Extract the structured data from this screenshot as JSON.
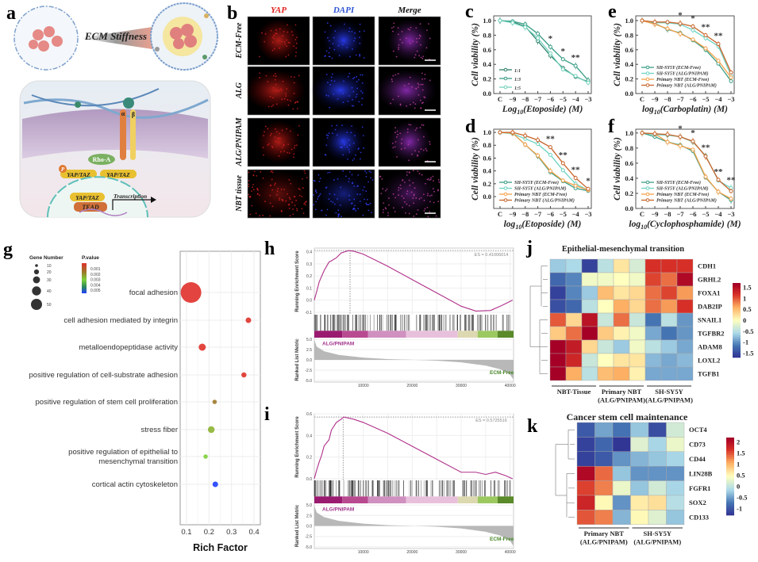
{
  "panel_labels": [
    "a",
    "b",
    "c",
    "d",
    "e",
    "f",
    "g",
    "h",
    "i",
    "j",
    "k"
  ],
  "panel_a": {
    "title": "ECM Stiffness",
    "rho": "Rho-A",
    "yap1": "YAP/TAZ",
    "yap2": "YAP/TAZ",
    "yap3": "YAP/TAZ",
    "tead": "TEAD",
    "transcription": "Transcription",
    "p": "P",
    "alpha": "α",
    "beta": "β"
  },
  "panel_b": {
    "columns": [
      {
        "label": "YAP",
        "color": "#e0201c"
      },
      {
        "label": "DAPI",
        "color": "#2f55d4"
      },
      {
        "label": "Merge",
        "color": "#111111"
      }
    ],
    "rows": [
      "ECM-Free",
      "ALG",
      "ALG/PNIPAM",
      "NBT tissue"
    ]
  },
  "chart_data": [
    {
      "panel": "c",
      "type": "line",
      "x": [
        "C",
        "−9",
        "−8",
        "−7",
        "−6",
        "−5",
        "−4",
        "−3"
      ],
      "xlabel": {
        "pre": "Log",
        "sub": "10",
        "post": "(Etoposide) (M)"
      },
      "ylabel": "Cell viability (%)",
      "ylim": [
        0,
        1.065
      ],
      "yticks": [
        "0.0",
        "0.2",
        "0.4",
        "0.6",
        "0.8",
        "1.0"
      ],
      "legend_position": "bottom-left",
      "series": [
        {
          "name": "1:1",
          "color": "#2f7f6a",
          "values": [
            1.0,
            0.98,
            0.92,
            0.72,
            0.52,
            0.35,
            0.23,
            0.16
          ]
        },
        {
          "name": "1:3",
          "color": "#3a9e86",
          "values": [
            1.0,
            0.99,
            0.95,
            0.82,
            0.64,
            0.47,
            0.38,
            0.18
          ]
        },
        {
          "name": "1:5",
          "color": "#72d2bd",
          "values": [
            1.0,
            0.97,
            0.91,
            0.76,
            0.55,
            0.33,
            0.24,
            0.15
          ]
        }
      ],
      "annotations": [
        {
          "x": 4,
          "text": "*"
        },
        {
          "x": 5,
          "text": "*"
        },
        {
          "x": 6,
          "text": "**"
        }
      ]
    },
    {
      "panel": "d",
      "type": "line",
      "x": [
        "C",
        "−9",
        "−8",
        "−7",
        "−6",
        "−5",
        "−4",
        "−3"
      ],
      "xlabel": {
        "pre": "log",
        "sub": "10",
        "post": "(Etoposide) (M)"
      },
      "ylabel": "Cell viability (%)",
      "ylim": [
        -0.185,
        1.05
      ],
      "yticks": [
        "0.0",
        "0.2",
        "0.4",
        "0.6",
        "0.8",
        "1.0"
      ],
      "legend_position": "bottom-left",
      "series": [
        {
          "name": "SH-SY5Y (ECM-Free)",
          "color": "#3a9e86",
          "values": [
            1.0,
            0.99,
            0.81,
            0.63,
            0.38,
            0.24,
            0.13,
            0.09
          ]
        },
        {
          "name": "SH-SY5Y (ALG/PNIPAM)",
          "color": "#6fd3c3",
          "values": [
            1.0,
            0.98,
            0.9,
            0.82,
            0.65,
            0.41,
            0.2,
            0.1
          ]
        },
        {
          "name": "Primary NBT (ECM-Free)",
          "color": "#f5a24a",
          "values": [
            1.0,
            0.99,
            0.81,
            0.64,
            0.4,
            0.25,
            0.17,
            0.1
          ]
        },
        {
          "name": "Primary NBT (ALG/PNIPAM)",
          "color": "#c8642a",
          "values": [
            1.0,
            1.0,
            0.95,
            0.88,
            0.77,
            0.52,
            0.29,
            0.12
          ]
        }
      ],
      "annotations": [
        {
          "x": 4,
          "text": "**"
        },
        {
          "x": 5,
          "text": "**"
        },
        {
          "x": 6,
          "text": "**"
        },
        {
          "x": 7,
          "text": "*"
        }
      ]
    },
    {
      "panel": "e",
      "type": "line",
      "x": [
        "C",
        "−9",
        "−8",
        "−7",
        "−6",
        "−5",
        "−4",
        "−3"
      ],
      "xlabel": {
        "pre": "log",
        "sub": "10",
        "post": "(Carboplatin) (M)"
      },
      "ylabel": "Cell viability (%)",
      "ylim": [
        0,
        1.065
      ],
      "yticks": [
        "0.0",
        "0.2",
        "0.4",
        "0.6",
        "0.8",
        "1.0"
      ],
      "legend_position": "bottom-left",
      "series": [
        {
          "name": "SH-SY5Y (ECM-Free)",
          "color": "#3a9e86",
          "values": [
            1.0,
            0.96,
            0.88,
            0.83,
            0.73,
            0.6,
            0.41,
            0.17
          ]
        },
        {
          "name": "SH-SY5Y (ALG/PNIPAM)",
          "color": "#6fd3c3",
          "values": [
            1.0,
            0.97,
            0.97,
            0.95,
            0.87,
            0.76,
            0.65,
            0.25
          ]
        },
        {
          "name": "Primary NBT (ECM-Free)",
          "color": "#f5a24a",
          "values": [
            1.0,
            0.95,
            0.89,
            0.82,
            0.74,
            0.62,
            0.45,
            0.22
          ]
        },
        {
          "name": "Primary NBT (ALG/PNIPAM)",
          "color": "#c8642a",
          "values": [
            1.0,
            0.98,
            0.98,
            0.96,
            0.92,
            0.8,
            0.68,
            0.29
          ]
        }
      ],
      "annotations": [
        {
          "x": 3,
          "text": "*"
        },
        {
          "x": 4,
          "text": "*"
        },
        {
          "x": 5,
          "text": "**"
        },
        {
          "x": 6,
          "text": "**"
        }
      ]
    },
    {
      "panel": "f",
      "type": "line",
      "x": [
        "C",
        "−9",
        "−8",
        "−7",
        "−6",
        "−5",
        "−4",
        "−3"
      ],
      "xlabel": {
        "pre": "log",
        "sub": "10",
        "post": "(Cyclophosphamide) (M)"
      },
      "ylabel": "Cell viability (%)",
      "ylim": [
        0,
        1.05
      ],
      "yticks": [
        "0.0",
        "0.2",
        "0.4",
        "0.6",
        "0.8",
        "1.0"
      ],
      "legend_position": "bottom-left",
      "series": [
        {
          "name": "SH-SY5Y (ECM-Free)",
          "color": "#3a9e86",
          "values": [
            1.0,
            0.95,
            0.88,
            0.84,
            0.76,
            0.41,
            0.22,
            0.11
          ]
        },
        {
          "name": "SH-SY5Y (ALG/PNIPAM)",
          "color": "#6fd3c3",
          "values": [
            1.0,
            0.98,
            0.97,
            0.95,
            0.88,
            0.7,
            0.37,
            0.27
          ]
        },
        {
          "name": "Primary NBT (ECM-Free)",
          "color": "#f5a24a",
          "values": [
            1.0,
            0.99,
            0.88,
            0.83,
            0.78,
            0.42,
            0.22,
            0.13
          ]
        },
        {
          "name": "Primary NBT (ALG/PNIPAM)",
          "color": "#c8642a",
          "values": [
            1.0,
            0.99,
            0.98,
            0.95,
            0.89,
            0.69,
            0.38,
            0.23
          ]
        }
      ],
      "annotations": [
        {
          "x": 3,
          "text": "*"
        },
        {
          "x": 4,
          "text": "*"
        },
        {
          "x": 5,
          "text": "**"
        },
        {
          "x": 6,
          "text": "**"
        },
        {
          "x": 7,
          "text": "**"
        }
      ]
    },
    {
      "panel": "g",
      "type": "scatter",
      "xlabel": "Rich Factor",
      "xlim": [
        0.072,
        0.428
      ],
      "xticks": [
        "0.1",
        "0.2",
        "0.3",
        "0.4"
      ],
      "grid": true,
      "size_legend": {
        "title": "Gene Number",
        "values": [
          "10",
          "20",
          "30",
          "40",
          "50"
        ]
      },
      "color_legend": {
        "title": "P.value",
        "values": [
          "0.001",
          "0.002",
          "0.003",
          "0.004",
          "0.005"
        ]
      },
      "points": [
        {
          "term": "focal adhesion",
          "rich_factor": 0.12,
          "gene_number": 50,
          "p_value": 0.0008
        },
        {
          "term": "cell adhesion mediated by integrin",
          "rich_factor": 0.375,
          "gene_number": 12,
          "p_value": 0.0009
        },
        {
          "term": "metalloendopeptidase activity",
          "rich_factor": 0.17,
          "gene_number": 16,
          "p_value": 0.0009
        },
        {
          "term": "positive regulation of cell-substrate adhesion",
          "rich_factor": 0.355,
          "gene_number": 11,
          "p_value": 0.001
        },
        {
          "term": "positive regulation of stem cell proliferation",
          "rich_factor": 0.225,
          "gene_number": 9,
          "p_value": 0.002
        },
        {
          "term": "stress fiber",
          "rich_factor": 0.21,
          "gene_number": 15,
          "p_value": 0.0026
        },
        {
          "term": "positive regulation of epithelial to mesenchymal transition",
          "rich_factor": 0.185,
          "gene_number": 9,
          "p_value": 0.003
        },
        {
          "term": "cortical actin cytoskeleton",
          "rich_factor": 0.228,
          "gene_number": 12,
          "p_value": 0.005
        }
      ]
    },
    {
      "panel": "h",
      "type": "line",
      "es_label": "ES = 0.41006014",
      "ylabel_top": "Running Enrichment Score",
      "ylabel_bottom": "Ranked List Metric",
      "xlim": [
        0,
        40700
      ],
      "xticks": [
        "10000",
        "20000",
        "30000",
        "40000"
      ],
      "ylim": [
        -0.12,
        0.43
      ],
      "yticks": [
        "-0.1",
        "0.0",
        "0.1",
        "0.2",
        "0.3",
        "0.4"
      ],
      "metric_ticks": [
        "5.0",
        "2.5",
        "0.0",
        "-2.5",
        "-5.0"
      ],
      "es_curve": [
        [
          0,
          0
        ],
        [
          500,
          0.07
        ],
        [
          1000,
          0.15
        ],
        [
          2000,
          0.24
        ],
        [
          3000,
          0.31
        ],
        [
          3500,
          0.33
        ],
        [
          4500,
          0.35
        ],
        [
          5500,
          0.39
        ],
        [
          7000,
          0.41
        ],
        [
          8000,
          0.405
        ],
        [
          10000,
          0.38
        ],
        [
          15000,
          0.28
        ],
        [
          20000,
          0.17
        ],
        [
          25000,
          0.06
        ],
        [
          30000,
          -0.05
        ],
        [
          33000,
          -0.09
        ],
        [
          36000,
          -0.085
        ],
        [
          38000,
          -0.05
        ],
        [
          40500,
          0.0
        ]
      ],
      "peak_rank": 7300,
      "ranked_metric": [
        [
          0,
          4.8
        ],
        [
          500,
          3.2
        ],
        [
          2000,
          2.1
        ],
        [
          5000,
          1.2
        ],
        [
          10000,
          0.55
        ],
        [
          15000,
          0.2
        ],
        [
          20000,
          0.02
        ],
        [
          25000,
          -0.2
        ],
        [
          30000,
          -0.6
        ],
        [
          35000,
          -1.4
        ],
        [
          38000,
          -2.3
        ],
        [
          40000,
          -3.6
        ],
        [
          40700,
          -4.8
        ]
      ],
      "high_label": "ALG/PNIPAM",
      "low_label": "ECM-Free"
    },
    {
      "panel": "i",
      "type": "line",
      "es_label": "ES = 0.5725516",
      "ylabel_top": "Running Enrichment Score",
      "ylabel_bottom": "Ranked List Metric",
      "xlim": [
        0,
        40700
      ],
      "xticks": [
        "10000",
        "20000",
        "30000",
        "40000"
      ],
      "ylim": [
        -0.015,
        0.6
      ],
      "yticks": [
        "0.0",
        "0.2",
        "0.4",
        "0.6"
      ],
      "metric_ticks": [
        "5.0",
        "2.5",
        "0.0",
        "-2.5",
        "-5.0"
      ],
      "es_curve": [
        [
          0,
          0
        ],
        [
          500,
          0.08
        ],
        [
          1000,
          0.16
        ],
        [
          1500,
          0.22
        ],
        [
          2000,
          0.3
        ],
        [
          3000,
          0.36
        ],
        [
          3500,
          0.45
        ],
        [
          4500,
          0.52
        ],
        [
          5500,
          0.55
        ],
        [
          6000,
          0.57
        ],
        [
          8000,
          0.55
        ],
        [
          10000,
          0.52
        ],
        [
          15000,
          0.42
        ],
        [
          20000,
          0.3
        ],
        [
          25000,
          0.18
        ],
        [
          30000,
          0.06
        ],
        [
          33000,
          0.06
        ],
        [
          35000,
          0.04
        ],
        [
          37000,
          0.06
        ],
        [
          39000,
          0.03
        ],
        [
          40500,
          0.0
        ]
      ],
      "peak_rank": 5900,
      "ranked_metric": [
        [
          0,
          4.8
        ],
        [
          500,
          3.2
        ],
        [
          2000,
          2.1
        ],
        [
          5000,
          1.2
        ],
        [
          10000,
          0.55
        ],
        [
          15000,
          0.2
        ],
        [
          20000,
          0.02
        ],
        [
          25000,
          -0.2
        ],
        [
          30000,
          -0.6
        ],
        [
          35000,
          -1.4
        ],
        [
          38000,
          -2.3
        ],
        [
          40000,
          -3.6
        ],
        [
          40700,
          -4.8
        ]
      ],
      "high_label": "ALG/PNIPAM",
      "low_label": "ECM-Free"
    },
    {
      "panel": "j",
      "type": "heatmap",
      "title": "Epithelial-mesenchymal transition",
      "rows": [
        "CDH1",
        "GRHL2",
        "FOXA1",
        "DAB2IP",
        "SNAIL1",
        "TGFBR2",
        "ADAM8",
        "LOXL2",
        "TGFB1"
      ],
      "groups": [
        {
          "lines": [
            "NBT-Tissue"
          ],
          "columns": 3
        },
        {
          "lines": [
            "Primary NBT",
            "(ALG/PNIPAM)"
          ],
          "columns": 3
        },
        {
          "lines": [
            "SH-SY5Y",
            "(ALG/PNIPAM)"
          ],
          "columns": 3
        }
      ],
      "values": [
        [
          -0.7,
          -0.6,
          -1.6,
          -0.5,
          0.2,
          -0.3,
          1.2,
          1.2,
          1.2
        ],
        [
          -1.3,
          -1.1,
          -0.1,
          -0.1,
          0.0,
          -0.1,
          1.1,
          0.9,
          1.6
        ],
        [
          -1.6,
          -1.1,
          -0.7,
          0.5,
          0.2,
          0.3,
          0.9,
          1.1,
          0.7
        ],
        [
          -1.5,
          -1.3,
          -0.5,
          0.0,
          0.6,
          0.3,
          0.9,
          0.7,
          1.2
        ],
        [
          1.0,
          0.3,
          1.5,
          -0.4,
          0.9,
          -0.4,
          -1.2,
          -0.5,
          -1.0
        ],
        [
          0.4,
          0.9,
          1.7,
          0.4,
          0.1,
          -0.1,
          -0.9,
          -1.2,
          -1.0
        ],
        [
          1.7,
          1.4,
          0.3,
          -0.4,
          -0.7,
          -0.1,
          -0.5,
          -0.7,
          -0.9
        ],
        [
          1.7,
          1.3,
          -0.4,
          0.0,
          0.2,
          0.2,
          -0.8,
          -0.9,
          -0.8
        ],
        [
          1.7,
          0.6,
          -0.5,
          0.5,
          0.6,
          0.1,
          -0.9,
          -0.9,
          -0.9
        ]
      ],
      "color_range": [
        -1.7,
        1.7
      ],
      "colorbar_ticks": [
        "1.5",
        "1",
        "0.5",
        "0",
        "-0.5",
        "-1",
        "-1.5"
      ],
      "row_clusters": [
        [
          0,
          1,
          2,
          3
        ],
        [
          4,
          5,
          6,
          7,
          8
        ]
      ]
    },
    {
      "panel": "k",
      "type": "heatmap",
      "title": "Cancer stem cell maintenance",
      "rows": [
        "OCT4",
        "CD73",
        "CD44",
        "LIN28B",
        "FGFR1",
        "SOX2",
        "CD133"
      ],
      "groups": [
        {
          "lines": [
            "Primary NBT",
            "(ALG/PNIPAM)"
          ],
          "columns": 3
        },
        {
          "lines": [
            "SH-SY5Y",
            "(ALG/PNIPAM)"
          ],
          "columns": 3
        }
      ],
      "values": [
        [
          -1.0,
          -0.5,
          -0.8,
          -0.3,
          -1.1,
          0.1
        ],
        [
          -1.2,
          -0.9,
          -1.3,
          0.2,
          -0.2,
          0.3
        ],
        [
          -1.2,
          -1.0,
          -0.6,
          -0.4,
          -0.3,
          -0.2
        ],
        [
          2.1,
          1.4,
          -0.3,
          -0.6,
          -0.6,
          -0.6
        ],
        [
          1.6,
          1.3,
          0.3,
          -0.3,
          0.1,
          -0.2
        ],
        [
          1.8,
          0.5,
          -0.6,
          0.6,
          0.7,
          -0.1
        ],
        [
          1.5,
          1.3,
          -0.4,
          0.5,
          0.2,
          -0.3
        ]
      ],
      "color_range": [
        -1.3,
        2.2
      ],
      "colorbar_ticks": [
        "2",
        "1.5",
        "1",
        "0.5",
        "0",
        "-0.5",
        "-1"
      ],
      "row_clusters": [
        [
          0,
          1,
          2
        ],
        [
          3,
          4,
          5,
          6
        ]
      ]
    }
  ]
}
